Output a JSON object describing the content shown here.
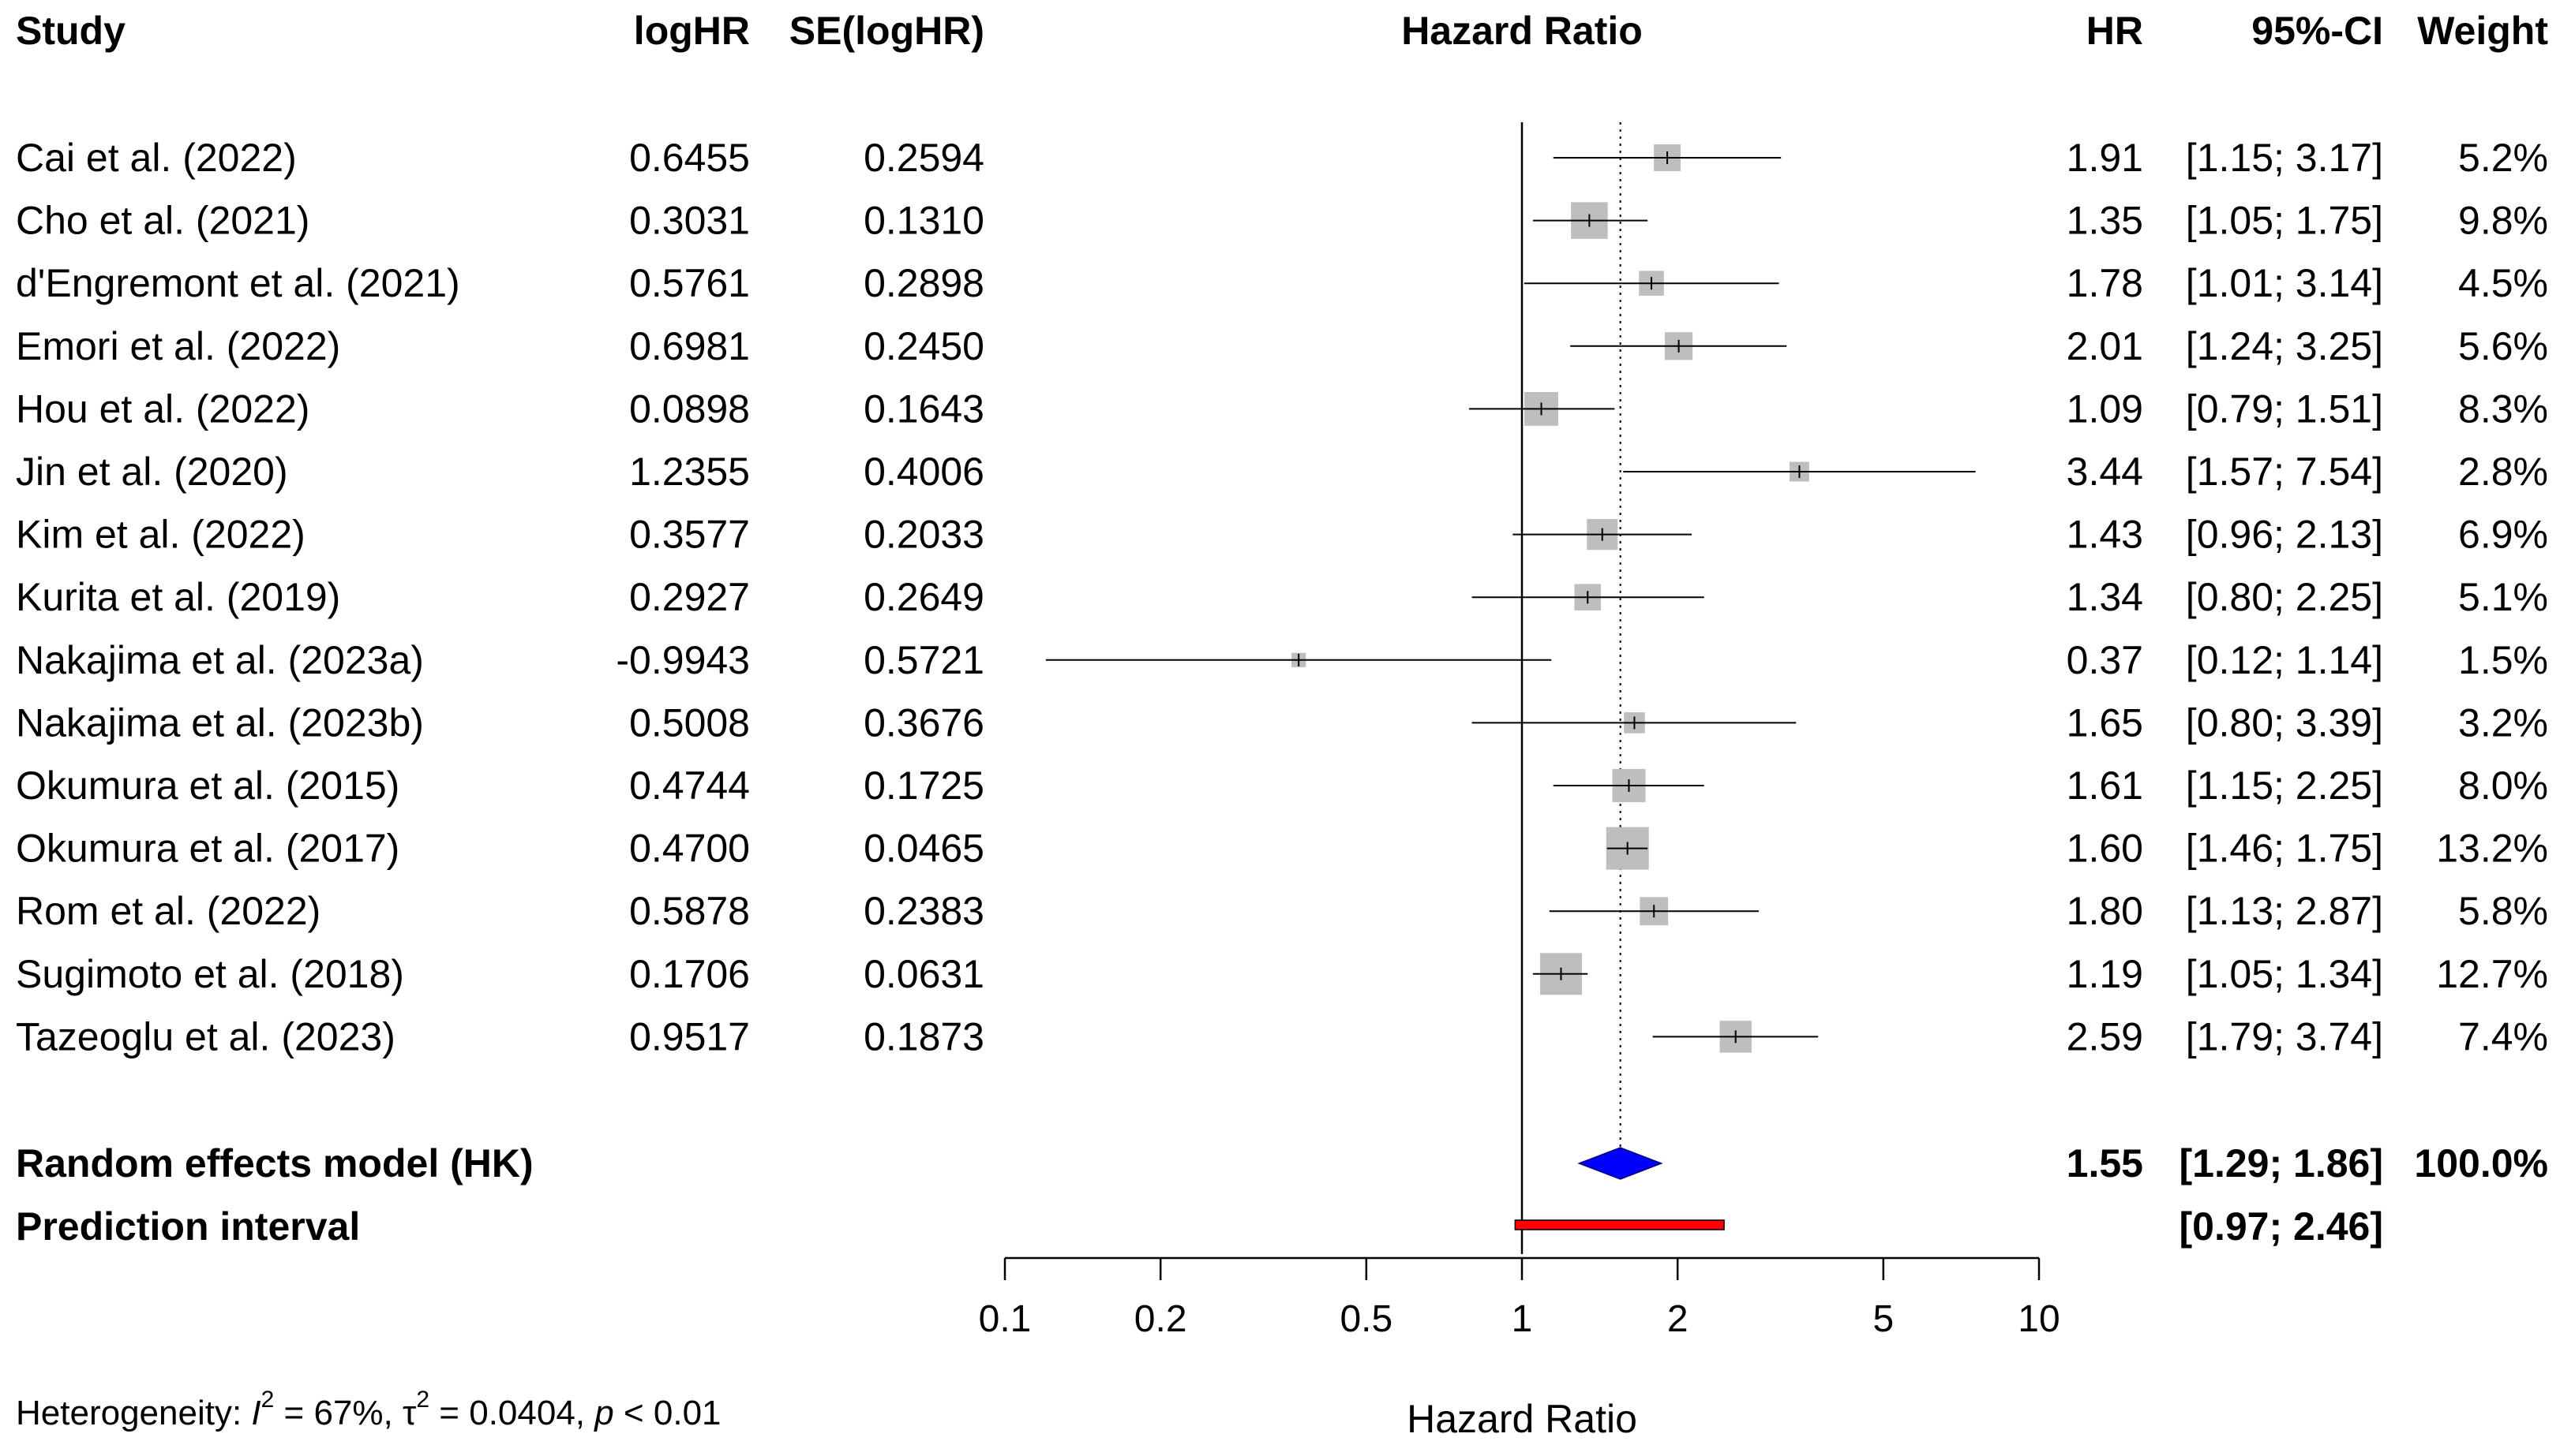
{
  "headers": {
    "study": "Study",
    "loghr": "logHR",
    "se": "SE(logHR)",
    "plot": "Hazard Ratio",
    "hr": "HR",
    "ci": "95%-CI",
    "weight": "Weight"
  },
  "studies": [
    {
      "name": "Cai et al. (2022)",
      "loghr": "0.6455",
      "se": "0.2594",
      "hr_text": "1.91",
      "ci_text": "[1.15; 3.17]",
      "weight_text": "5.2%",
      "hr": 1.91,
      "lower": 1.15,
      "upper": 3.17,
      "weight": 5.2
    },
    {
      "name": "Cho et al. (2021)",
      "loghr": "0.3031",
      "se": "0.1310",
      "hr_text": "1.35",
      "ci_text": "[1.05; 1.75]",
      "weight_text": "9.8%",
      "hr": 1.35,
      "lower": 1.05,
      "upper": 1.75,
      "weight": 9.8
    },
    {
      "name": "d'Engremont et al. (2021)",
      "loghr": "0.5761",
      "se": "0.2898",
      "hr_text": "1.78",
      "ci_text": "[1.01; 3.14]",
      "weight_text": "4.5%",
      "hr": 1.78,
      "lower": 1.01,
      "upper": 3.14,
      "weight": 4.5
    },
    {
      "name": "Emori et al. (2022)",
      "loghr": "0.6981",
      "se": "0.2450",
      "hr_text": "2.01",
      "ci_text": "[1.24; 3.25]",
      "weight_text": "5.6%",
      "hr": 2.01,
      "lower": 1.24,
      "upper": 3.25,
      "weight": 5.6
    },
    {
      "name": "Hou et al. (2022)",
      "loghr": "0.0898",
      "se": "0.1643",
      "hr_text": "1.09",
      "ci_text": "[0.79; 1.51]",
      "weight_text": "8.3%",
      "hr": 1.09,
      "lower": 0.79,
      "upper": 1.51,
      "weight": 8.3
    },
    {
      "name": "Jin et al. (2020)",
      "loghr": "1.2355",
      "se": "0.4006",
      "hr_text": "3.44",
      "ci_text": "[1.57; 7.54]",
      "weight_text": "2.8%",
      "hr": 3.44,
      "lower": 1.57,
      "upper": 7.54,
      "weight": 2.8
    },
    {
      "name": "Kim et al. (2022)",
      "loghr": "0.3577",
      "se": "0.2033",
      "hr_text": "1.43",
      "ci_text": "[0.96; 2.13]",
      "weight_text": "6.9%",
      "hr": 1.43,
      "lower": 0.96,
      "upper": 2.13,
      "weight": 6.9
    },
    {
      "name": "Kurita et al. (2019)",
      "loghr": "0.2927",
      "se": "0.2649",
      "hr_text": "1.34",
      "ci_text": "[0.80; 2.25]",
      "weight_text": "5.1%",
      "hr": 1.34,
      "lower": 0.8,
      "upper": 2.25,
      "weight": 5.1
    },
    {
      "name": "Nakajima et al. (2023a)",
      "loghr": "-0.9943",
      "se": "0.5721",
      "hr_text": "0.37",
      "ci_text": "[0.12; 1.14]",
      "weight_text": "1.5%",
      "hr": 0.37,
      "lower": 0.12,
      "upper": 1.14,
      "weight": 1.5
    },
    {
      "name": "Nakajima et al. (2023b)",
      "loghr": "0.5008",
      "se": "0.3676",
      "hr_text": "1.65",
      "ci_text": "[0.80; 3.39]",
      "weight_text": "3.2%",
      "hr": 1.65,
      "lower": 0.8,
      "upper": 3.39,
      "weight": 3.2
    },
    {
      "name": "Okumura et al. (2015)",
      "loghr": "0.4744",
      "se": "0.1725",
      "hr_text": "1.61",
      "ci_text": "[1.15; 2.25]",
      "weight_text": "8.0%",
      "hr": 1.61,
      "lower": 1.15,
      "upper": 2.25,
      "weight": 8.0
    },
    {
      "name": "Okumura et al. (2017)",
      "loghr": "0.4700",
      "se": "0.0465",
      "hr_text": "1.60",
      "ci_text": "[1.46; 1.75]",
      "weight_text": "13.2%",
      "hr": 1.6,
      "lower": 1.46,
      "upper": 1.75,
      "weight": 13.2
    },
    {
      "name": "Rom et al. (2022)",
      "loghr": "0.5878",
      "se": "0.2383",
      "hr_text": "1.80",
      "ci_text": "[1.13; 2.87]",
      "weight_text": "5.8%",
      "hr": 1.8,
      "lower": 1.13,
      "upper": 2.87,
      "weight": 5.8
    },
    {
      "name": "Sugimoto et al. (2018)",
      "loghr": "0.1706",
      "se": "0.0631",
      "hr_text": "1.19",
      "ci_text": "[1.05; 1.34]",
      "weight_text": "12.7%",
      "hr": 1.19,
      "lower": 1.05,
      "upper": 1.34,
      "weight": 12.7
    },
    {
      "name": "Tazeoglu et al. (2023)",
      "loghr": "0.9517",
      "se": "0.1873",
      "hr_text": "2.59",
      "ci_text": "[1.79; 3.74]",
      "weight_text": "7.4%",
      "hr": 2.59,
      "lower": 1.79,
      "upper": 3.74,
      "weight": 7.4
    }
  ],
  "summary": {
    "label": "Random effects model (HK)",
    "hr_text": "1.55",
    "ci_text": "[1.29; 1.86]",
    "weight_text": "100.0%",
    "hr": 1.55,
    "lower": 1.29,
    "upper": 1.86
  },
  "prediction": {
    "label": "Prediction interval",
    "ci_text": "[0.97; 2.46]",
    "lower": 0.97,
    "upper": 2.46
  },
  "axis": {
    "ticks": [
      0.1,
      0.2,
      0.5,
      1,
      2,
      5,
      10
    ],
    "tick_labels": [
      "0.1",
      "0.2",
      "0.5",
      "1",
      "2",
      "5",
      "10"
    ],
    "xlabel": "Hazard Ratio",
    "xlim": [
      0.1,
      10
    ],
    "scale": "log",
    "reference": 1
  },
  "heterogeneity": {
    "prefix": "Heterogeneity: ",
    "i2_symbol": "I",
    "i2_sup": "2",
    "i2_value": " = 67%, ",
    "tau_symbol": "τ",
    "tau_sup": "2",
    "tau_value": " = 0.0404, ",
    "p_symbol": "p",
    "p_value": " < 0.01"
  },
  "colors": {
    "square": "#bebebe",
    "diamond": "#0000ff",
    "prediction": "#ff0000",
    "line": "#000000"
  },
  "chart_data": {
    "type": "forest",
    "title": "",
    "xlabel": "Hazard Ratio",
    "xscale": "log",
    "xlim": [
      0.1,
      10
    ],
    "categories": [
      "Cai et al. (2022)",
      "Cho et al. (2021)",
      "d'Engremont et al. (2021)",
      "Emori et al. (2022)",
      "Hou et al. (2022)",
      "Jin et al. (2020)",
      "Kim et al. (2022)",
      "Kurita et al. (2019)",
      "Nakajima et al. (2023a)",
      "Nakajima et al. (2023b)",
      "Okumura et al. (2015)",
      "Okumura et al. (2017)",
      "Rom et al. (2022)",
      "Sugimoto et al. (2018)",
      "Tazeoglu et al. (2023)"
    ],
    "series": [
      {
        "name": "HR",
        "values": [
          1.91,
          1.35,
          1.78,
          2.01,
          1.09,
          3.44,
          1.43,
          1.34,
          0.37,
          1.65,
          1.61,
          1.6,
          1.8,
          1.19,
          2.59
        ]
      },
      {
        "name": "CI lower",
        "values": [
          1.15,
          1.05,
          1.01,
          1.24,
          0.79,
          1.57,
          0.96,
          0.8,
          0.12,
          0.8,
          1.15,
          1.46,
          1.13,
          1.05,
          1.79
        ]
      },
      {
        "name": "CI upper",
        "values": [
          3.17,
          1.75,
          3.14,
          3.25,
          1.51,
          7.54,
          2.13,
          2.25,
          1.14,
          3.39,
          2.25,
          1.75,
          2.87,
          1.34,
          3.74
        ]
      },
      {
        "name": "Weight (%)",
        "values": [
          5.2,
          9.8,
          4.5,
          5.6,
          8.3,
          2.8,
          6.9,
          5.1,
          1.5,
          3.2,
          8.0,
          13.2,
          5.8,
          12.7,
          7.4
        ]
      }
    ],
    "pooled": {
      "hr": 1.55,
      "lower": 1.29,
      "upper": 1.86
    },
    "prediction_interval": {
      "lower": 0.97,
      "upper": 2.46
    }
  }
}
